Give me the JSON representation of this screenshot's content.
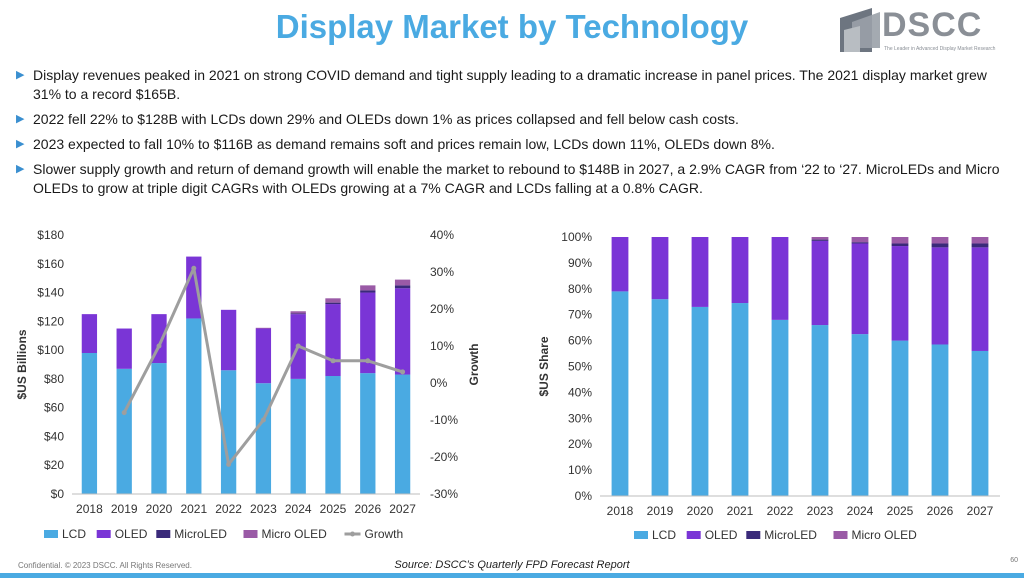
{
  "slide": {
    "title": "Display Market by Technology",
    "logo_text": "DSCC",
    "logo_tagline": "The Leader in Advanced Display Market Research",
    "bullets": [
      "Display revenues peaked in 2021 on strong COVID demand and tight supply leading to a dramatic increase in panel prices. The 2021 display market grew 31% to a record $165B.",
      "2022 fell 22% to $128B with LCDs down 29% and OLEDs down 1% as prices collapsed and fell below cash costs.",
      "2023 expected to fall 10% to $116B as demand remains soft and prices remain low, LCDs down 11%, OLEDs down 8%.",
      "Slower supply growth and return of demand growth will enable the market to rebound to $148B in 2027, a 2.9% CAGR from ‘22 to ‘27. MicroLEDs and Micro OLEDs to grow at triple digit CAGRs with OLEDs growing at a 7% CAGR and LCDs falling at a 0.8% CAGR."
    ],
    "footer_left": "Confidential. © 2023 DSCC. All Rights Reserved.",
    "source": "Source: DSCC’s Quarterly FPD Forecast Report",
    "page_number": "60",
    "colors": {
      "title": "#4aaae2",
      "lcd": "#4aaae2",
      "oled": "#7a35d6",
      "microled": "#3a2a7a",
      "micro_oled": "#9a5aa6",
      "growth": "#9e9e9e"
    }
  },
  "chart_data": [
    {
      "type": "bar",
      "stacked": true,
      "title": "",
      "xlabel": "",
      "ylabel": "$US Billions",
      "y2label": "Growth",
      "ylim": [
        0,
        180
      ],
      "yticks": [
        "$0",
        "$20",
        "$40",
        "$60",
        "$80",
        "$100",
        "$120",
        "$140",
        "$160",
        "$180"
      ],
      "y2lim": [
        -30,
        40
      ],
      "y2ticks": [
        "-30%",
        "-20%",
        "-10%",
        "0%",
        "10%",
        "20%",
        "30%",
        "40%"
      ],
      "categories": [
        "2018",
        "2019",
        "2020",
        "2021",
        "2022",
        "2023",
        "2024",
        "2025",
        "2026",
        "2027"
      ],
      "series": [
        {
          "name": "LCD",
          "color": "#4aaae2",
          "values": [
            98,
            87,
            91,
            122,
            86,
            77,
            80,
            82,
            84,
            83
          ]
        },
        {
          "name": "OLED",
          "color": "#7a35d6",
          "values": [
            27,
            28,
            34,
            43,
            42,
            38,
            45,
            50,
            56,
            60
          ]
        },
        {
          "name": "MicroLED",
          "color": "#3a2a7a",
          "values": [
            0,
            0,
            0,
            0,
            0,
            0,
            0.5,
            1,
            1.5,
            2
          ]
        },
        {
          "name": "Micro OLED",
          "color": "#9a5aa6",
          "values": [
            0,
            0,
            0,
            0,
            0,
            0.5,
            1.5,
            3,
            3.5,
            4
          ]
        }
      ],
      "line_series": {
        "name": "Growth",
        "color": "#9e9e9e",
        "axis": "right",
        "values": [
          null,
          -8,
          10,
          31,
          -22,
          -10,
          10,
          6,
          6,
          3
        ]
      },
      "legend_position": "bottom"
    },
    {
      "type": "bar",
      "stacked": true,
      "title": "",
      "xlabel": "",
      "ylabel": "$US Share",
      "ylim": [
        0,
        100
      ],
      "yticks": [
        "0%",
        "10%",
        "20%",
        "30%",
        "40%",
        "50%",
        "60%",
        "70%",
        "80%",
        "90%",
        "100%"
      ],
      "categories": [
        "2018",
        "2019",
        "2020",
        "2021",
        "2022",
        "2023",
        "2024",
        "2025",
        "2026",
        "2027"
      ],
      "series": [
        {
          "name": "LCD",
          "color": "#4aaae2",
          "values": [
            79,
            76,
            73,
            74.5,
            68,
            66,
            62.5,
            60,
            58.5,
            56
          ]
        },
        {
          "name": "OLED",
          "color": "#7a35d6",
          "values": [
            21,
            24,
            27,
            25.5,
            32,
            32.5,
            35,
            36.5,
            37.5,
            40
          ]
        },
        {
          "name": "MicroLED",
          "color": "#3a2a7a",
          "values": [
            0,
            0,
            0,
            0,
            0,
            0.5,
            0.5,
            1,
            1.5,
            1.5
          ]
        },
        {
          "name": "Micro OLED",
          "color": "#9a5aa6",
          "values": [
            0,
            0,
            0,
            0,
            0,
            1,
            2,
            2.5,
            2.5,
            2.5
          ]
        }
      ],
      "legend_position": "bottom"
    }
  ]
}
